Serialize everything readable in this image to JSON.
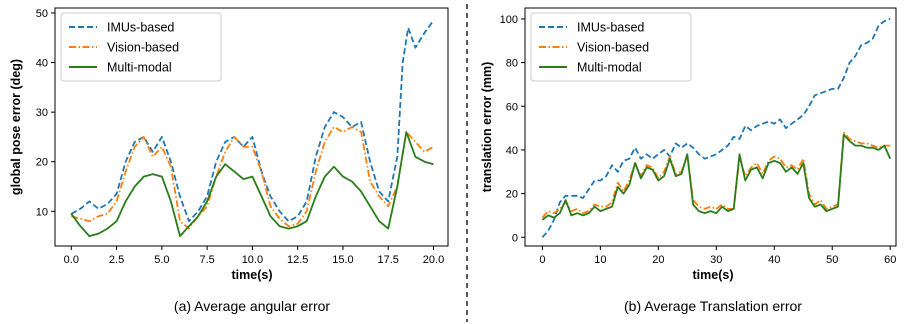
{
  "chart_data": [
    {
      "type": "line",
      "caption": "(a) Average angular error",
      "xlabel": "time(s)",
      "ylabel": "global pose error (deg)",
      "xlim": [
        -0.9,
        20.8
      ],
      "ylim": [
        3,
        51
      ],
      "xticks": [
        "0.0",
        "2.5",
        "5.0",
        "7.5",
        "10.0",
        "12.5",
        "15.0",
        "17.5",
        "20.0"
      ],
      "yticks": [
        10,
        20,
        30,
        40,
        50
      ],
      "legend_position": "upper-left",
      "grid": false,
      "series": [
        {
          "name": "IMUs-based",
          "color": "#1f77b4",
          "style": "dashed",
          "x": [
            0.0,
            0.5,
            1.0,
            1.5,
            2.0,
            2.5,
            3.0,
            3.5,
            4.0,
            4.5,
            5.0,
            5.5,
            6.0,
            6.5,
            7.0,
            7.5,
            8.0,
            8.5,
            9.0,
            9.5,
            10.0,
            10.5,
            11.0,
            11.5,
            12.0,
            12.5,
            13.0,
            13.5,
            14.0,
            14.5,
            15.0,
            15.5,
            16.0,
            16.5,
            17.0,
            17.5,
            18.0,
            18.3,
            18.6,
            19.0,
            19.5,
            20.0
          ],
          "y": [
            9.5,
            10.5,
            12.0,
            10.5,
            11.5,
            13.5,
            20.0,
            24.0,
            25.0,
            22.0,
            25.0,
            20.0,
            13.0,
            8.0,
            10.0,
            13.0,
            20.0,
            24.0,
            25.0,
            23.0,
            25.0,
            18.0,
            13.0,
            10.0,
            8.0,
            9.0,
            12.0,
            21.0,
            27.0,
            30.0,
            29.0,
            27.0,
            28.0,
            20.0,
            14.0,
            12.0,
            21.0,
            40.0,
            47.0,
            43.0,
            46.0,
            48.5
          ]
        },
        {
          "name": "Vision-based",
          "color": "#ff7f0e",
          "style": "dashdot",
          "x": [
            0.0,
            0.5,
            1.0,
            1.5,
            2.0,
            2.5,
            3.0,
            3.5,
            4.0,
            4.5,
            5.0,
            5.5,
            6.0,
            6.5,
            7.0,
            7.5,
            8.0,
            8.5,
            9.0,
            9.5,
            10.0,
            10.5,
            11.0,
            11.5,
            12.0,
            12.5,
            13.0,
            13.5,
            14.0,
            14.5,
            15.0,
            15.5,
            16.0,
            16.5,
            17.0,
            17.5,
            18.0,
            18.5,
            19.0,
            19.5,
            20.0
          ],
          "y": [
            9.0,
            8.5,
            8.0,
            9.0,
            9.5,
            12.0,
            18.0,
            23.0,
            25.0,
            21.0,
            23.0,
            19.0,
            8.0,
            6.5,
            9.0,
            11.0,
            17.0,
            22.0,
            25.0,
            23.0,
            23.0,
            18.0,
            11.0,
            8.5,
            7.0,
            7.5,
            10.0,
            18.0,
            24.0,
            27.0,
            26.0,
            27.0,
            26.0,
            16.0,
            13.0,
            11.0,
            15.0,
            26.0,
            24.0,
            22.0,
            23.0
          ]
        },
        {
          "name": "Multi-modal",
          "color": "#2a7d1a",
          "style": "solid",
          "x": [
            0.0,
            0.5,
            1.0,
            1.5,
            2.0,
            2.5,
            3.0,
            3.5,
            4.0,
            4.5,
            5.0,
            5.5,
            6.0,
            6.5,
            7.0,
            7.5,
            8.0,
            8.5,
            9.0,
            9.5,
            10.0,
            10.5,
            11.0,
            11.5,
            12.0,
            12.5,
            13.0,
            13.5,
            14.0,
            14.5,
            15.0,
            15.5,
            16.0,
            16.5,
            17.0,
            17.5,
            18.0,
            18.5,
            19.0,
            19.5,
            20.0
          ],
          "y": [
            9.5,
            7.0,
            5.0,
            5.5,
            6.5,
            8.0,
            12.0,
            15.0,
            17.0,
            17.5,
            17.0,
            12.0,
            5.0,
            7.0,
            9.0,
            12.0,
            17.0,
            19.5,
            18.0,
            16.5,
            17.0,
            13.0,
            9.0,
            7.0,
            6.5,
            7.0,
            8.0,
            13.0,
            17.0,
            19.0,
            17.0,
            16.0,
            14.0,
            11.0,
            8.0,
            6.5,
            15.0,
            26.0,
            21.0,
            20.0,
            19.5
          ]
        }
      ]
    },
    {
      "type": "line",
      "caption": "(b) Average Translation error",
      "xlabel": "time(s)",
      "ylabel": "translation error (mm)",
      "xlim": [
        -3,
        61
      ],
      "ylim": [
        -4,
        105
      ],
      "xticks": [
        "0",
        "10",
        "20",
        "30",
        "40",
        "50",
        "60"
      ],
      "yticks": [
        0,
        20,
        40,
        60,
        80,
        100
      ],
      "legend_position": "upper-left",
      "grid": false,
      "series": [
        {
          "name": "IMUs-based",
          "color": "#1f77b4",
          "style": "dashed",
          "x": [
            0,
            1,
            2,
            3,
            4,
            5,
            6,
            7,
            8,
            9,
            10,
            11,
            12,
            13,
            14,
            15,
            16,
            17,
            18,
            19,
            20,
            21,
            22,
            23,
            24,
            25,
            26,
            27,
            28,
            29,
            30,
            31,
            32,
            33,
            34,
            35,
            36,
            37,
            38,
            39,
            40,
            41,
            42,
            43,
            44,
            45,
            46,
            47,
            48,
            49,
            50,
            51,
            52,
            53,
            54,
            55,
            56,
            57,
            58,
            59,
            60
          ],
          "y": [
            0,
            3,
            8,
            16,
            19,
            19,
            19,
            18,
            22,
            26,
            26,
            28,
            33,
            30,
            35,
            36,
            41,
            36,
            38,
            36,
            38,
            40,
            37,
            43,
            41,
            43,
            41,
            38,
            36,
            37,
            38,
            40,
            42,
            46,
            45,
            51,
            49,
            51,
            52,
            53,
            52,
            54,
            50,
            52,
            54,
            56,
            60,
            65,
            66,
            67,
            68,
            68,
            73,
            80,
            83,
            88,
            89,
            91,
            97,
            99,
            100
          ]
        },
        {
          "name": "Vision-based",
          "color": "#ff7f0e",
          "style": "dashdot",
          "x": [
            0,
            1,
            2,
            3,
            4,
            5,
            6,
            7,
            8,
            9,
            10,
            11,
            12,
            13,
            14,
            15,
            16,
            17,
            18,
            19,
            20,
            21,
            22,
            23,
            24,
            25,
            26,
            27,
            28,
            29,
            30,
            31,
            32,
            33,
            34,
            35,
            36,
            37,
            38,
            39,
            40,
            41,
            42,
            43,
            44,
            45,
            46,
            47,
            48,
            49,
            50,
            51,
            52,
            53,
            54,
            55,
            56,
            57,
            58,
            59,
            60
          ],
          "y": [
            9,
            12,
            11,
            13,
            16,
            12,
            13,
            11,
            12,
            15,
            14,
            14,
            16,
            25,
            21,
            26,
            34,
            28,
            33,
            32,
            27,
            30,
            37,
            29,
            30,
            38,
            17,
            14,
            13,
            14,
            13,
            15,
            13,
            13,
            36,
            28,
            32,
            34,
            29,
            35,
            37,
            36,
            32,
            33,
            31,
            36,
            20,
            15,
            17,
            13,
            14,
            15,
            48,
            45,
            44,
            43,
            43,
            42,
            41,
            42,
            42
          ]
        },
        {
          "name": "Multi-modal",
          "color": "#2a7d1a",
          "style": "solid",
          "x": [
            0,
            1,
            2,
            3,
            4,
            5,
            6,
            7,
            8,
            9,
            10,
            11,
            12,
            13,
            14,
            15,
            16,
            17,
            18,
            19,
            20,
            21,
            22,
            23,
            24,
            25,
            26,
            27,
            28,
            29,
            30,
            31,
            32,
            33,
            34,
            35,
            36,
            37,
            38,
            39,
            40,
            41,
            42,
            43,
            44,
            45,
            46,
            47,
            48,
            49,
            50,
            51,
            52,
            53,
            54,
            55,
            56,
            57,
            58,
            59,
            60
          ],
          "y": [
            8,
            10,
            9,
            11,
            17,
            10,
            11,
            10,
            11,
            14,
            12,
            13,
            14,
            23,
            20,
            24,
            34,
            27,
            32,
            31,
            26,
            28,
            36,
            28,
            29,
            38,
            15,
            12,
            11,
            12,
            11,
            14,
            12,
            13,
            38,
            26,
            31,
            32,
            27,
            34,
            35,
            34,
            30,
            32,
            29,
            34,
            18,
            14,
            15,
            12,
            13,
            14,
            47,
            44,
            42,
            42,
            41,
            41,
            40,
            42,
            36
          ]
        }
      ]
    }
  ]
}
